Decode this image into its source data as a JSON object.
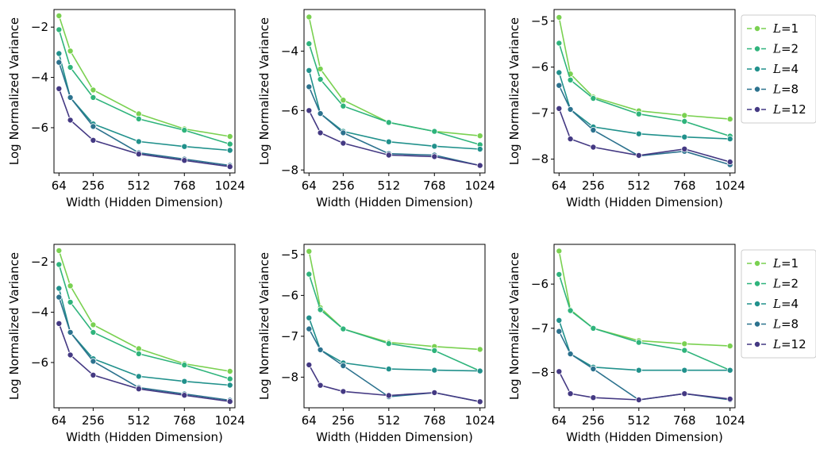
{
  "chart_data": [
    {
      "type": "line",
      "xlabel": "Width (Hidden Dimension)",
      "ylabel": "Log Normalized Variance",
      "xticks": [
        64,
        256,
        512,
        768,
        1024
      ],
      "yticks": [
        -2,
        -4,
        -6
      ],
      "ylim": [
        -7.8,
        -1.3
      ],
      "legend": "none",
      "x": [
        64,
        128,
        256,
        512,
        768,
        1024
      ],
      "series": [
        {
          "name": "L=1",
          "values": [
            -1.55,
            -2.95,
            -4.5,
            -5.45,
            -6.05,
            -6.35
          ]
        },
        {
          "name": "L=2",
          "values": [
            -2.1,
            -3.6,
            -4.8,
            -5.65,
            -6.1,
            -6.65
          ]
        },
        {
          "name": "L=4",
          "values": [
            -3.05,
            -4.8,
            -5.85,
            -6.55,
            -6.75,
            -6.9
          ]
        },
        {
          "name": "L=8",
          "values": [
            -3.4,
            -4.8,
            -5.95,
            -7.0,
            -7.25,
            -7.5
          ]
        },
        {
          "name": "L=12",
          "values": [
            -4.45,
            -5.7,
            -6.5,
            -7.05,
            -7.3,
            -7.55
          ]
        }
      ]
    },
    {
      "type": "line",
      "xlabel": "Width (Hidden Dimension)",
      "ylabel": "Log Normalized Variance",
      "xticks": [
        64,
        256,
        512,
        768,
        1024
      ],
      "yticks": [
        -4,
        -6,
        -8
      ],
      "ylim": [
        -8.1,
        -2.6
      ],
      "legend": "none",
      "x": [
        64,
        128,
        256,
        512,
        768,
        1024
      ],
      "series": [
        {
          "name": "L=1",
          "values": [
            -2.85,
            -4.6,
            -5.65,
            -6.4,
            -6.7,
            -6.85
          ]
        },
        {
          "name": "L=2",
          "values": [
            -3.75,
            -4.95,
            -5.85,
            -6.4,
            -6.7,
            -7.15
          ]
        },
        {
          "name": "L=4",
          "values": [
            -4.65,
            -6.1,
            -6.7,
            -7.05,
            -7.2,
            -7.3
          ]
        },
        {
          "name": "L=8",
          "values": [
            -5.2,
            -6.1,
            -6.75,
            -7.45,
            -7.5,
            -7.85
          ]
        },
        {
          "name": "L=12",
          "values": [
            -6.0,
            -6.75,
            -7.1,
            -7.5,
            -7.55,
            -7.85
          ]
        }
      ]
    },
    {
      "type": "line",
      "xlabel": "Width (Hidden Dimension)",
      "ylabel": "Log Normalized Variance",
      "xticks": [
        64,
        256,
        512,
        768,
        1024
      ],
      "yticks": [
        -5,
        -6,
        -7,
        -8
      ],
      "ylim": [
        -8.3,
        -4.75
      ],
      "legend": "right",
      "x": [
        64,
        128,
        256,
        512,
        768,
        1024
      ],
      "series": [
        {
          "name": "L=1",
          "values": [
            -4.92,
            -6.15,
            -6.65,
            -6.95,
            -7.05,
            -7.13
          ]
        },
        {
          "name": "L=2",
          "values": [
            -5.48,
            -6.28,
            -6.68,
            -7.02,
            -7.18,
            -7.5
          ]
        },
        {
          "name": "L=4",
          "values": [
            -6.12,
            -6.92,
            -7.3,
            -7.45,
            -7.52,
            -7.56
          ]
        },
        {
          "name": "L=8",
          "values": [
            -6.4,
            -6.92,
            -7.37,
            -7.93,
            -7.83,
            -8.12
          ]
        },
        {
          "name": "L=12",
          "values": [
            -6.9,
            -7.56,
            -7.74,
            -7.92,
            -7.78,
            -8.06
          ]
        }
      ]
    },
    {
      "type": "line",
      "xlabel": "Width (Hidden Dimension)",
      "ylabel": "Log Normalized Variance",
      "xticks": [
        64,
        256,
        512,
        768,
        1024
      ],
      "yticks": [
        -2,
        -4,
        -6
      ],
      "ylim": [
        -7.8,
        -1.3
      ],
      "legend": "none",
      "x": [
        64,
        128,
        256,
        512,
        768,
        1024
      ],
      "series": [
        {
          "name": "L=1",
          "values": [
            -1.55,
            -2.95,
            -4.5,
            -5.45,
            -6.05,
            -6.35
          ]
        },
        {
          "name": "L=2",
          "values": [
            -2.1,
            -3.6,
            -4.8,
            -5.65,
            -6.1,
            -6.65
          ]
        },
        {
          "name": "L=4",
          "values": [
            -3.05,
            -4.8,
            -5.85,
            -6.55,
            -6.75,
            -6.9
          ]
        },
        {
          "name": "L=8",
          "values": [
            -3.4,
            -4.8,
            -5.95,
            -7.0,
            -7.25,
            -7.5
          ]
        },
        {
          "name": "L=12",
          "values": [
            -4.45,
            -5.7,
            -6.5,
            -7.05,
            -7.3,
            -7.55
          ]
        }
      ]
    },
    {
      "type": "line",
      "xlabel": "Width (Hidden Dimension)",
      "ylabel": "Log Normalized Variance",
      "xticks": [
        64,
        256,
        512,
        768,
        1024
      ],
      "yticks": [
        -5,
        -6,
        -7,
        -8
      ],
      "ylim": [
        -8.75,
        -4.75
      ],
      "legend": "none",
      "x": [
        64,
        128,
        256,
        512,
        768,
        1024
      ],
      "series": [
        {
          "name": "L=1",
          "values": [
            -4.92,
            -6.3,
            -6.82,
            -7.15,
            -7.25,
            -7.32
          ]
        },
        {
          "name": "L=2",
          "values": [
            -5.48,
            -6.35,
            -6.82,
            -7.18,
            -7.35,
            -7.85
          ]
        },
        {
          "name": "L=4",
          "values": [
            -6.55,
            -7.33,
            -7.65,
            -7.8,
            -7.83,
            -7.85
          ]
        },
        {
          "name": "L=8",
          "values": [
            -6.82,
            -7.33,
            -7.72,
            -8.48,
            -8.38,
            -8.6
          ]
        },
        {
          "name": "L=12",
          "values": [
            -7.7,
            -8.2,
            -8.35,
            -8.45,
            -8.38,
            -8.6
          ]
        }
      ]
    },
    {
      "type": "line",
      "xlabel": "Width (Hidden Dimension)",
      "ylabel": "Log Normalized Variance",
      "xticks": [
        64,
        256,
        512,
        768,
        1024
      ],
      "yticks": [
        -6,
        -7,
        -8
      ],
      "ylim": [
        -8.8,
        -5.1
      ],
      "legend": "right",
      "x": [
        64,
        128,
        256,
        512,
        768,
        1024
      ],
      "series": [
        {
          "name": "L=1",
          "values": [
            -5.25,
            -6.58,
            -7.0,
            -7.28,
            -7.35,
            -7.4
          ]
        },
        {
          "name": "L=2",
          "values": [
            -5.78,
            -6.6,
            -7.0,
            -7.32,
            -7.5,
            -7.95
          ]
        },
        {
          "name": "L=4",
          "values": [
            -6.82,
            -7.58,
            -7.88,
            -7.95,
            -7.95,
            -7.95
          ]
        },
        {
          "name": "L=8",
          "values": [
            -7.07,
            -7.58,
            -7.92,
            -8.62,
            -8.48,
            -8.62
          ]
        },
        {
          "name": "L=12",
          "values": [
            -7.98,
            -8.48,
            -8.57,
            -8.62,
            -8.48,
            -8.6
          ]
        }
      ]
    }
  ],
  "legend": {
    "entries": [
      {
        "label": "L",
        "suffix": "=1",
        "color": "#7ad151"
      },
      {
        "label": "L",
        "suffix": "=2",
        "color": "#2fb47c"
      },
      {
        "label": "L",
        "suffix": "=4",
        "color": "#21918c"
      },
      {
        "label": "L",
        "suffix": "=8",
        "color": "#2c728e"
      },
      {
        "label": "L",
        "suffix": "=12",
        "color": "#443983"
      }
    ]
  },
  "series_colors": [
    "#7ad151",
    "#2fb47c",
    "#21918c",
    "#2c728e",
    "#443983"
  ]
}
